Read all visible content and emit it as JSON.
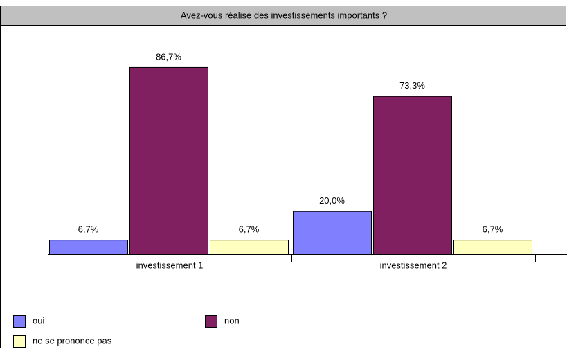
{
  "chart_data": {
    "type": "bar",
    "title": "Avez-vous réalisé des investissements importants ?",
    "categories": [
      "investissement 1",
      "investissement 2"
    ],
    "series": [
      {
        "name": "oui",
        "color": "#8080ff",
        "values": [
          6.7,
          20.0
        ],
        "value_labels": [
          "6,7%",
          "20,0%"
        ]
      },
      {
        "name": "non",
        "color": "#802060",
        "values": [
          86.7,
          73.3
        ],
        "value_labels": [
          "86,7%",
          "73,3%"
        ]
      },
      {
        "name": "ne se prononce pas",
        "color": "#ffffc0",
        "values": [
          6.7,
          6.7
        ],
        "value_labels": [
          "6,7%",
          "6,7%"
        ]
      }
    ],
    "ylim": [
      0,
      87
    ],
    "grid": false
  }
}
